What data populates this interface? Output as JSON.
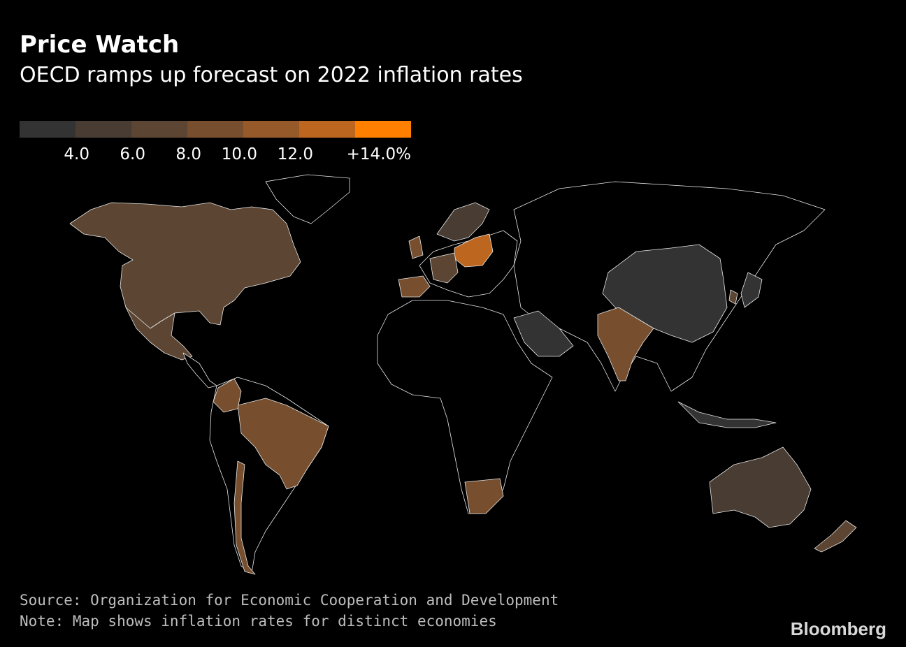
{
  "header": {
    "title": "Price Watch",
    "subtitle": "OECD ramps up forecast on 2022 inflation rates"
  },
  "legend": {
    "colors": [
      "#333333",
      "#483c33",
      "#5c4532",
      "#774f2f",
      "#96592a",
      "#bd661f",
      "#ff8000"
    ],
    "labels": [
      "4.0",
      "6.0",
      "8.0",
      "10.0",
      "12.0",
      "+14.0%"
    ]
  },
  "footer": {
    "source": "Source: Organization for Economic Cooperation and Development",
    "note": "Note: Map shows inflation rates for distinct economies",
    "brand": "Bloomberg"
  }
}
